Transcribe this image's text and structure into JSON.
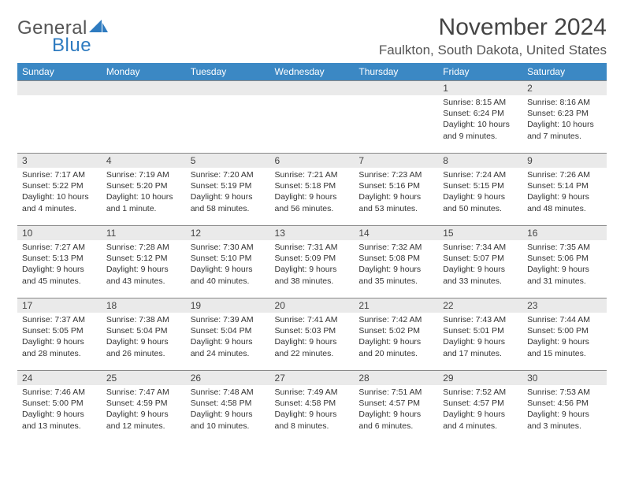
{
  "logo": {
    "part1": "General",
    "part2": "Blue"
  },
  "title": "November 2024",
  "location": "Faulkton, South Dakota, United States",
  "colors": {
    "header_bg": "#3b88c4",
    "header_text": "#ffffff",
    "daynum_bg": "#eaeaea",
    "border": "#888888",
    "sail": "#2e7bc0"
  },
  "day_headers": [
    "Sunday",
    "Monday",
    "Tuesday",
    "Wednesday",
    "Thursday",
    "Friday",
    "Saturday"
  ],
  "weeks": [
    [
      {
        "n": "",
        "sunrise": "",
        "sunset": "",
        "daylight": ""
      },
      {
        "n": "",
        "sunrise": "",
        "sunset": "",
        "daylight": ""
      },
      {
        "n": "",
        "sunrise": "",
        "sunset": "",
        "daylight": ""
      },
      {
        "n": "",
        "sunrise": "",
        "sunset": "",
        "daylight": ""
      },
      {
        "n": "",
        "sunrise": "",
        "sunset": "",
        "daylight": ""
      },
      {
        "n": "1",
        "sunrise": "Sunrise: 8:15 AM",
        "sunset": "Sunset: 6:24 PM",
        "daylight": "Daylight: 10 hours and 9 minutes."
      },
      {
        "n": "2",
        "sunrise": "Sunrise: 8:16 AM",
        "sunset": "Sunset: 6:23 PM",
        "daylight": "Daylight: 10 hours and 7 minutes."
      }
    ],
    [
      {
        "n": "3",
        "sunrise": "Sunrise: 7:17 AM",
        "sunset": "Sunset: 5:22 PM",
        "daylight": "Daylight: 10 hours and 4 minutes."
      },
      {
        "n": "4",
        "sunrise": "Sunrise: 7:19 AM",
        "sunset": "Sunset: 5:20 PM",
        "daylight": "Daylight: 10 hours and 1 minute."
      },
      {
        "n": "5",
        "sunrise": "Sunrise: 7:20 AM",
        "sunset": "Sunset: 5:19 PM",
        "daylight": "Daylight: 9 hours and 58 minutes."
      },
      {
        "n": "6",
        "sunrise": "Sunrise: 7:21 AM",
        "sunset": "Sunset: 5:18 PM",
        "daylight": "Daylight: 9 hours and 56 minutes."
      },
      {
        "n": "7",
        "sunrise": "Sunrise: 7:23 AM",
        "sunset": "Sunset: 5:16 PM",
        "daylight": "Daylight: 9 hours and 53 minutes."
      },
      {
        "n": "8",
        "sunrise": "Sunrise: 7:24 AM",
        "sunset": "Sunset: 5:15 PM",
        "daylight": "Daylight: 9 hours and 50 minutes."
      },
      {
        "n": "9",
        "sunrise": "Sunrise: 7:26 AM",
        "sunset": "Sunset: 5:14 PM",
        "daylight": "Daylight: 9 hours and 48 minutes."
      }
    ],
    [
      {
        "n": "10",
        "sunrise": "Sunrise: 7:27 AM",
        "sunset": "Sunset: 5:13 PM",
        "daylight": "Daylight: 9 hours and 45 minutes."
      },
      {
        "n": "11",
        "sunrise": "Sunrise: 7:28 AM",
        "sunset": "Sunset: 5:12 PM",
        "daylight": "Daylight: 9 hours and 43 minutes."
      },
      {
        "n": "12",
        "sunrise": "Sunrise: 7:30 AM",
        "sunset": "Sunset: 5:10 PM",
        "daylight": "Daylight: 9 hours and 40 minutes."
      },
      {
        "n": "13",
        "sunrise": "Sunrise: 7:31 AM",
        "sunset": "Sunset: 5:09 PM",
        "daylight": "Daylight: 9 hours and 38 minutes."
      },
      {
        "n": "14",
        "sunrise": "Sunrise: 7:32 AM",
        "sunset": "Sunset: 5:08 PM",
        "daylight": "Daylight: 9 hours and 35 minutes."
      },
      {
        "n": "15",
        "sunrise": "Sunrise: 7:34 AM",
        "sunset": "Sunset: 5:07 PM",
        "daylight": "Daylight: 9 hours and 33 minutes."
      },
      {
        "n": "16",
        "sunrise": "Sunrise: 7:35 AM",
        "sunset": "Sunset: 5:06 PM",
        "daylight": "Daylight: 9 hours and 31 minutes."
      }
    ],
    [
      {
        "n": "17",
        "sunrise": "Sunrise: 7:37 AM",
        "sunset": "Sunset: 5:05 PM",
        "daylight": "Daylight: 9 hours and 28 minutes."
      },
      {
        "n": "18",
        "sunrise": "Sunrise: 7:38 AM",
        "sunset": "Sunset: 5:04 PM",
        "daylight": "Daylight: 9 hours and 26 minutes."
      },
      {
        "n": "19",
        "sunrise": "Sunrise: 7:39 AM",
        "sunset": "Sunset: 5:04 PM",
        "daylight": "Daylight: 9 hours and 24 minutes."
      },
      {
        "n": "20",
        "sunrise": "Sunrise: 7:41 AM",
        "sunset": "Sunset: 5:03 PM",
        "daylight": "Daylight: 9 hours and 22 minutes."
      },
      {
        "n": "21",
        "sunrise": "Sunrise: 7:42 AM",
        "sunset": "Sunset: 5:02 PM",
        "daylight": "Daylight: 9 hours and 20 minutes."
      },
      {
        "n": "22",
        "sunrise": "Sunrise: 7:43 AM",
        "sunset": "Sunset: 5:01 PM",
        "daylight": "Daylight: 9 hours and 17 minutes."
      },
      {
        "n": "23",
        "sunrise": "Sunrise: 7:44 AM",
        "sunset": "Sunset: 5:00 PM",
        "daylight": "Daylight: 9 hours and 15 minutes."
      }
    ],
    [
      {
        "n": "24",
        "sunrise": "Sunrise: 7:46 AM",
        "sunset": "Sunset: 5:00 PM",
        "daylight": "Daylight: 9 hours and 13 minutes."
      },
      {
        "n": "25",
        "sunrise": "Sunrise: 7:47 AM",
        "sunset": "Sunset: 4:59 PM",
        "daylight": "Daylight: 9 hours and 12 minutes."
      },
      {
        "n": "26",
        "sunrise": "Sunrise: 7:48 AM",
        "sunset": "Sunset: 4:58 PM",
        "daylight": "Daylight: 9 hours and 10 minutes."
      },
      {
        "n": "27",
        "sunrise": "Sunrise: 7:49 AM",
        "sunset": "Sunset: 4:58 PM",
        "daylight": "Daylight: 9 hours and 8 minutes."
      },
      {
        "n": "28",
        "sunrise": "Sunrise: 7:51 AM",
        "sunset": "Sunset: 4:57 PM",
        "daylight": "Daylight: 9 hours and 6 minutes."
      },
      {
        "n": "29",
        "sunrise": "Sunrise: 7:52 AM",
        "sunset": "Sunset: 4:57 PM",
        "daylight": "Daylight: 9 hours and 4 minutes."
      },
      {
        "n": "30",
        "sunrise": "Sunrise: 7:53 AM",
        "sunset": "Sunset: 4:56 PM",
        "daylight": "Daylight: 9 hours and 3 minutes."
      }
    ]
  ]
}
